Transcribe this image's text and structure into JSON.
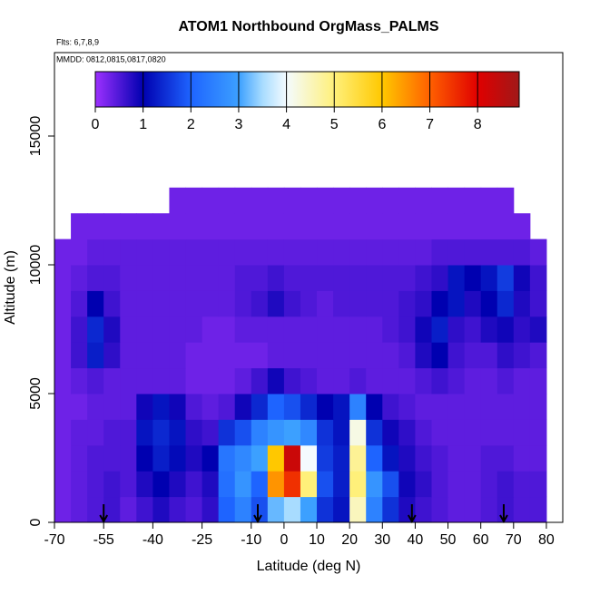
{
  "chart_data": {
    "type": "heatmap",
    "title": "ATOM1 Northbound OrgMass_PALMS",
    "subtitle": "Flts: 6,7,8,9",
    "annotation": "MMDD: 0812,0815,0817,0820",
    "x_label": "Latitude (deg N)",
    "y_label": "Altitude (m)",
    "xlim": [
      -70,
      85
    ],
    "ylim": [
      0,
      18240
    ],
    "xticks": [
      -70,
      -55,
      -40,
      -25,
      -10,
      0,
      10,
      20,
      30,
      40,
      50,
      60,
      70,
      80
    ],
    "yticks": [
      0,
      5000,
      10000,
      15000
    ],
    "x_edges": [
      -70,
      -65,
      -60,
      -55,
      -50,
      -45,
      -40,
      -35,
      -30,
      -25,
      -20,
      -15,
      -10,
      -5,
      0,
      5,
      10,
      15,
      20,
      25,
      30,
      35,
      40,
      45,
      50,
      55,
      60,
      65,
      70,
      75,
      80
    ],
    "y_edges": [
      0,
      1000,
      2000,
      3000,
      4000,
      5000,
      6000,
      7000,
      8000,
      9000,
      10000,
      11000,
      12000,
      13000
    ],
    "z": [
      [
        0.3,
        0.4,
        0.5,
        0.6,
        0.4,
        0.6,
        0.8,
        0.6,
        0.5,
        0.7,
        2.0,
        2.5,
        1.8,
        3.2,
        3.5,
        3.0,
        1.5,
        1.2,
        4.5,
        2.5,
        1.5,
        0.8,
        0.6,
        0.5,
        0.4,
        0.4,
        0.5,
        0.6,
        0.5,
        0.5
      ],
      [
        0.3,
        0.4,
        0.5,
        0.6,
        0.5,
        0.8,
        1.0,
        0.8,
        0.6,
        0.8,
        2.2,
        2.8,
        2.0,
        6.5,
        7.5,
        5.0,
        1.8,
        1.3,
        5.0,
        2.8,
        1.8,
        0.9,
        0.7,
        0.5,
        0.4,
        0.4,
        0.5,
        0.6,
        0.5,
        0.5
      ],
      [
        0.3,
        0.4,
        0.5,
        0.5,
        0.5,
        1.0,
        1.3,
        1.1,
        0.8,
        1.0,
        2.3,
        2.6,
        3.0,
        6.0,
        8.3,
        4.0,
        1.6,
        1.3,
        4.8,
        2.0,
        1.2,
        0.8,
        0.6,
        0.5,
        0.4,
        0.4,
        0.5,
        0.5,
        0.4,
        0.4
      ],
      [
        0.3,
        0.4,
        0.4,
        0.5,
        0.5,
        1.2,
        1.4,
        1.2,
        0.7,
        0.6,
        1.5,
        1.8,
        2.5,
        2.8,
        3.0,
        2.6,
        1.5,
        1.2,
        4.2,
        1.5,
        0.9,
        0.7,
        0.5,
        0.4,
        0.4,
        0.4,
        0.4,
        0.4,
        0.4,
        0.4
      ],
      [
        0.3,
        0.3,
        0.4,
        0.4,
        0.4,
        0.9,
        1.2,
        0.9,
        0.5,
        0.4,
        0.5,
        0.9,
        1.4,
        2.0,
        1.8,
        1.4,
        1.0,
        1.2,
        2.5,
        1.0,
        0.6,
        0.5,
        0.4,
        0.4,
        0.4,
        0.4,
        0.4,
        0.4,
        0.4,
        0.4
      ],
      [
        0.3,
        0.4,
        0.5,
        0.4,
        0.4,
        0.4,
        0.4,
        0.4,
        0.3,
        0.3,
        0.3,
        0.4,
        0.6,
        0.9,
        0.6,
        0.5,
        0.4,
        0.4,
        0.5,
        0.4,
        0.4,
        0.4,
        0.5,
        0.6,
        0.5,
        0.4,
        0.4,
        0.5,
        0.4,
        0.4
      ],
      [
        0.3,
        0.6,
        1.3,
        0.7,
        0.4,
        0.4,
        0.4,
        0.4,
        0.3,
        0.3,
        0.3,
        0.3,
        0.3,
        0.4,
        0.4,
        0.4,
        0.4,
        0.4,
        0.4,
        0.4,
        0.4,
        0.5,
        0.8,
        1.0,
        0.6,
        0.5,
        0.5,
        0.7,
        0.6,
        0.5
      ],
      [
        0.3,
        0.6,
        1.4,
        0.8,
        0.4,
        0.4,
        0.4,
        0.4,
        0.4,
        0.3,
        0.3,
        0.4,
        0.4,
        0.4,
        0.4,
        0.4,
        0.4,
        0.4,
        0.4,
        0.4,
        0.5,
        0.6,
        0.9,
        1.3,
        0.7,
        0.6,
        0.8,
        0.9,
        0.7,
        0.8
      ],
      [
        0.3,
        0.5,
        1.0,
        0.6,
        0.4,
        0.4,
        0.4,
        0.4,
        0.4,
        0.4,
        0.4,
        0.5,
        0.6,
        0.8,
        0.6,
        0.5,
        0.4,
        0.5,
        0.5,
        0.5,
        0.5,
        0.6,
        0.7,
        1.0,
        1.2,
        0.8,
        1.0,
        1.4,
        0.8,
        0.6
      ],
      [
        0.3,
        0.4,
        0.5,
        0.5,
        0.4,
        0.4,
        0.4,
        0.4,
        0.4,
        0.4,
        0.4,
        0.5,
        0.5,
        0.6,
        0.5,
        0.5,
        0.5,
        0.5,
        0.5,
        0.5,
        0.5,
        0.5,
        0.6,
        0.7,
        1.2,
        1.0,
        1.2,
        1.6,
        0.9,
        0.6
      ],
      [
        0.3,
        0.3,
        0.4,
        0.4,
        0.4,
        0.4,
        0.4,
        0.4,
        0.4,
        0.4,
        0.4,
        0.4,
        0.4,
        0.4,
        0.4,
        0.4,
        0.4,
        0.4,
        0.4,
        0.4,
        0.4,
        0.4,
        0.4,
        0.5,
        0.5,
        0.5,
        0.5,
        0.5,
        0.5,
        0.4
      ],
      [
        null,
        0.3,
        0.3,
        0.3,
        0.3,
        0.3,
        0.3,
        0.3,
        0.3,
        0.3,
        0.3,
        0.3,
        0.3,
        0.3,
        0.3,
        0.3,
        0.3,
        0.3,
        0.3,
        0.3,
        0.3,
        0.3,
        0.3,
        0.3,
        0.3,
        0.3,
        0.3,
        0.3,
        0.3,
        null
      ],
      [
        null,
        null,
        null,
        null,
        null,
        null,
        null,
        0.3,
        0.3,
        0.3,
        0.3,
        0.3,
        0.3,
        0.3,
        0.3,
        0.3,
        0.3,
        0.3,
        0.3,
        0.3,
        0.3,
        0.3,
        0.3,
        0.3,
        0.3,
        0.3,
        0.3,
        0.3,
        null,
        null
      ]
    ],
    "clim": [
      0,
      8.87
    ],
    "cticks": [
      0,
      1,
      2,
      3,
      4,
      5,
      6,
      7,
      8
    ],
    "colorscale": [
      [
        0,
        "#9d30ff"
      ],
      [
        1,
        "#0000b0"
      ],
      [
        2,
        "#1e64ff"
      ],
      [
        3,
        "#3ca0ff"
      ],
      [
        3.5,
        "#a8dcff"
      ],
      [
        4,
        "#f4fbff"
      ],
      [
        5,
        "#fff07a"
      ],
      [
        6,
        "#ffc800"
      ],
      [
        7,
        "#ff6000"
      ],
      [
        8,
        "#e00000"
      ],
      [
        8.87,
        "#a01818"
      ]
    ],
    "arrows": [
      -55,
      -8,
      39,
      67
    ]
  }
}
